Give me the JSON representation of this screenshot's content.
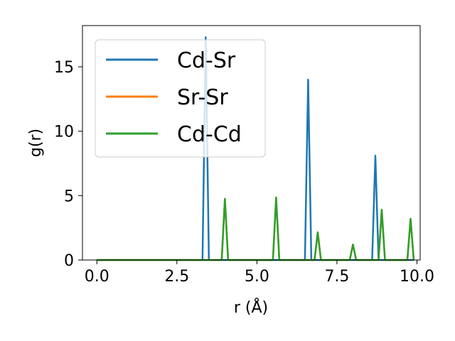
{
  "chart_data": {
    "type": "line",
    "title": "",
    "xlabel": "r (Å)",
    "ylabel": "g(r)",
    "xlim": [
      -0.45,
      10.1
    ],
    "ylim": [
      0,
      18.2
    ],
    "xticks": [
      0.0,
      2.5,
      5.0,
      7.5,
      10.0
    ],
    "xtick_labels": [
      "0.0",
      "2.5",
      "5.0",
      "7.5",
      "10.0"
    ],
    "yticks": [
      0,
      5,
      10,
      15
    ],
    "ytick_labels": [
      "0",
      "5",
      "10",
      "15"
    ],
    "grid": false,
    "legend_position": "top-left",
    "series": [
      {
        "name": "Cd-Sr",
        "color": "#1f77b4",
        "x": [
          0.0,
          3.3,
          3.4,
          3.5,
          6.5,
          6.6,
          6.7,
          8.6,
          8.7,
          8.8,
          9.9
        ],
        "y": [
          0,
          0,
          17.3,
          0,
          0,
          14.0,
          0,
          0,
          8.1,
          0,
          0
        ]
      },
      {
        "name": "Sr-Sr",
        "color": "#ff7f0e",
        "x": [
          0.0,
          3.9,
          4.0,
          4.1,
          5.5,
          5.6,
          5.7,
          6.8,
          6.9,
          7.0,
          7.9,
          8.0,
          8.1,
          8.8,
          8.9,
          9.0,
          9.7,
          9.8,
          9.9
        ],
        "y": [
          0,
          0,
          4.75,
          0,
          0,
          4.85,
          0,
          0,
          2.15,
          0,
          0,
          1.2,
          0,
          0,
          3.9,
          0,
          0,
          3.2,
          0
        ]
      },
      {
        "name": "Cd-Cd",
        "color": "#2ca02c",
        "x": [
          0.0,
          3.9,
          4.0,
          4.1,
          5.5,
          5.6,
          5.7,
          6.8,
          6.9,
          7.0,
          7.9,
          8.0,
          8.1,
          8.8,
          8.9,
          9.0,
          9.7,
          9.8,
          9.9
        ],
        "y": [
          0,
          0,
          4.75,
          0,
          0,
          4.85,
          0,
          0,
          2.15,
          0,
          0,
          1.2,
          0,
          0,
          3.9,
          0,
          0,
          3.2,
          0
        ]
      }
    ]
  }
}
